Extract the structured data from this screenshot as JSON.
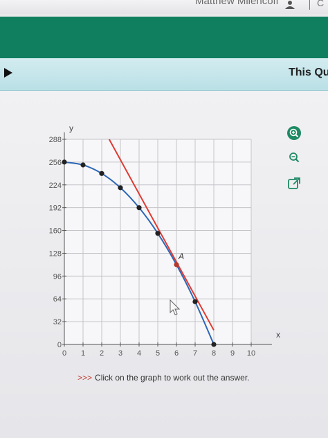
{
  "header": {
    "user_name": "Matthew Milencoff",
    "trailing_text": "C"
  },
  "question": {
    "title": "This Qu"
  },
  "tools": [
    {
      "name": "zoom-in-icon"
    },
    {
      "name": "zoom-out-icon"
    },
    {
      "name": "open-external-icon"
    }
  ],
  "instruction": {
    "arrows": ">>>",
    "text": "Click on the graph to work out the answer."
  },
  "colors": {
    "green_band": "#0f7f5f",
    "curve": "#2e67b5",
    "tangent": "#e03a33",
    "point_label": "#c0392b"
  },
  "chart_data": {
    "type": "line",
    "xlabel": "x",
    "ylabel": "y",
    "xlim": [
      0,
      10
    ],
    "ylim": [
      0,
      288
    ],
    "x_ticks": [
      0,
      1,
      2,
      3,
      4,
      5,
      6,
      7,
      8,
      9,
      10
    ],
    "y_ticks": [
      0,
      32,
      64,
      96,
      128,
      160,
      192,
      224,
      256,
      288
    ],
    "grid": true,
    "series": [
      {
        "x": [
          0,
          1,
          2,
          3,
          4,
          5,
          6,
          7,
          8
        ],
        "y": [
          256,
          252,
          240,
          220,
          192,
          156,
          112,
          60,
          0
        ]
      }
    ],
    "tangent_line": {
      "from": [
        2.4,
        288
      ],
      "to": [
        8,
        20
      ]
    },
    "annotation": {
      "label": "A",
      "x": 6,
      "y": 112
    }
  }
}
